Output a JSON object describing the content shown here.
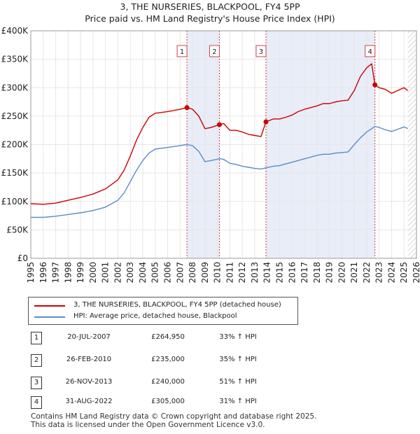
{
  "title_line1": "3, THE NURSERIES, BLACKPOOL, FY4 5PP",
  "title_line2": "Price paid vs. HM Land Registry's House Price Index (HPI)",
  "chart_data": {
    "type": "line",
    "title": "3, THE NURSERIES, BLACKPOOL, FY4 5PP — Price paid vs. HM Land Registry's House Price Index (HPI)",
    "xlabel": "",
    "ylabel": "",
    "xlim": [
      1995,
      2026
    ],
    "ylim": [
      0,
      400000
    ],
    "x_ticks": [
      1995,
      1996,
      1997,
      1998,
      1999,
      2000,
      2001,
      2002,
      2003,
      2004,
      2005,
      2006,
      2007,
      2008,
      2009,
      2010,
      2011,
      2012,
      2013,
      2014,
      2015,
      2016,
      2017,
      2018,
      2019,
      2020,
      2021,
      2022,
      2023,
      2024,
      2025,
      2026
    ],
    "y_ticks": [
      {
        "value": 0,
        "label": "£0"
      },
      {
        "value": 50000,
        "label": "£50K"
      },
      {
        "value": 100000,
        "label": "£100K"
      },
      {
        "value": 150000,
        "label": "£150K"
      },
      {
        "value": 200000,
        "label": "£200K"
      },
      {
        "value": 250000,
        "label": "£250K"
      },
      {
        "value": 300000,
        "label": "£300K"
      },
      {
        "value": 350000,
        "label": "£350K"
      },
      {
        "value": 400000,
        "label": "£400K"
      }
    ],
    "series": [
      {
        "name": "3, THE NURSERIES, BLACKPOOL, FY4 5PP (detached house)",
        "color": "#cc0000",
        "points": [
          [
            1995.0,
            96000
          ],
          [
            1996.0,
            95000
          ],
          [
            1997.0,
            97000
          ],
          [
            1998.0,
            102000
          ],
          [
            1999.0,
            107000
          ],
          [
            2000.0,
            113000
          ],
          [
            2001.0,
            122000
          ],
          [
            2002.0,
            138000
          ],
          [
            2002.5,
            155000
          ],
          [
            2003.0,
            180000
          ],
          [
            2003.5,
            208000
          ],
          [
            2004.0,
            230000
          ],
          [
            2004.5,
            248000
          ],
          [
            2005.0,
            255000
          ],
          [
            2006.0,
            258000
          ],
          [
            2007.0,
            262000
          ],
          [
            2007.55,
            264950
          ],
          [
            2008.0,
            262000
          ],
          [
            2008.5,
            250000
          ],
          [
            2009.0,
            228000
          ],
          [
            2009.5,
            230000
          ],
          [
            2010.16,
            235000
          ],
          [
            2010.5,
            237000
          ],
          [
            2011.0,
            225000
          ],
          [
            2011.5,
            225000
          ],
          [
            2012.0,
            222000
          ],
          [
            2012.5,
            218000
          ],
          [
            2013.0,
            216000
          ],
          [
            2013.5,
            214000
          ],
          [
            2013.9,
            240000
          ],
          [
            2014.5,
            245000
          ],
          [
            2015.0,
            245000
          ],
          [
            2015.5,
            248000
          ],
          [
            2016.0,
            252000
          ],
          [
            2016.5,
            258000
          ],
          [
            2017.0,
            262000
          ],
          [
            2017.5,
            265000
          ],
          [
            2018.0,
            268000
          ],
          [
            2018.5,
            272000
          ],
          [
            2019.0,
            272000
          ],
          [
            2019.5,
            275000
          ],
          [
            2020.0,
            277000
          ],
          [
            2020.5,
            278000
          ],
          [
            2021.0,
            295000
          ],
          [
            2021.5,
            320000
          ],
          [
            2022.0,
            335000
          ],
          [
            2022.4,
            342000
          ],
          [
            2022.66,
            305000
          ],
          [
            2023.0,
            300000
          ],
          [
            2023.5,
            297000
          ],
          [
            2024.0,
            290000
          ],
          [
            2024.5,
            295000
          ],
          [
            2025.0,
            300000
          ],
          [
            2025.3,
            295000
          ]
        ]
      },
      {
        "name": "HPI: Average price, detached house, Blackpool",
        "color": "#5b8cc8",
        "points": [
          [
            1995.0,
            72000
          ],
          [
            1996.0,
            72000
          ],
          [
            1997.0,
            74000
          ],
          [
            1998.0,
            77000
          ],
          [
            1999.0,
            80000
          ],
          [
            2000.0,
            84000
          ],
          [
            2001.0,
            90000
          ],
          [
            2002.0,
            102000
          ],
          [
            2002.5,
            115000
          ],
          [
            2003.0,
            135000
          ],
          [
            2003.5,
            155000
          ],
          [
            2004.0,
            172000
          ],
          [
            2004.5,
            185000
          ],
          [
            2005.0,
            192000
          ],
          [
            2006.0,
            195000
          ],
          [
            2007.0,
            198000
          ],
          [
            2007.55,
            200000
          ],
          [
            2008.0,
            198000
          ],
          [
            2008.5,
            188000
          ],
          [
            2009.0,
            170000
          ],
          [
            2009.5,
            172000
          ],
          [
            2010.16,
            175000
          ],
          [
            2010.5,
            174000
          ],
          [
            2011.0,
            167000
          ],
          [
            2011.5,
            165000
          ],
          [
            2012.0,
            162000
          ],
          [
            2012.5,
            160000
          ],
          [
            2013.0,
            158000
          ],
          [
            2013.5,
            157000
          ],
          [
            2013.9,
            159000
          ],
          [
            2014.5,
            162000
          ],
          [
            2015.0,
            163000
          ],
          [
            2015.5,
            166000
          ],
          [
            2016.0,
            169000
          ],
          [
            2016.5,
            172000
          ],
          [
            2017.0,
            175000
          ],
          [
            2017.5,
            178000
          ],
          [
            2018.0,
            181000
          ],
          [
            2018.5,
            183000
          ],
          [
            2019.0,
            183000
          ],
          [
            2019.5,
            185000
          ],
          [
            2020.0,
            186000
          ],
          [
            2020.5,
            187000
          ],
          [
            2021.0,
            200000
          ],
          [
            2021.5,
            212000
          ],
          [
            2022.0,
            222000
          ],
          [
            2022.4,
            228000
          ],
          [
            2022.66,
            232000
          ],
          [
            2023.0,
            230000
          ],
          [
            2023.5,
            226000
          ],
          [
            2024.0,
            223000
          ],
          [
            2024.5,
            227000
          ],
          [
            2025.0,
            231000
          ],
          [
            2025.3,
            228000
          ]
        ]
      }
    ],
    "transactions": [
      {
        "num": "1",
        "date": "20-JUL-2007",
        "x": 2007.55,
        "price_value": 264950,
        "price": "£264,950",
        "hpi": "33% ↑ HPI"
      },
      {
        "num": "2",
        "date": "26-FEB-2010",
        "x": 2010.16,
        "price_value": 235000,
        "price": "£235,000",
        "hpi": "35% ↑ HPI"
      },
      {
        "num": "3",
        "date": "26-NOV-2013",
        "x": 2013.9,
        "price_value": 240000,
        "price": "£240,000",
        "hpi": "51% ↑ HPI"
      },
      {
        "num": "4",
        "date": "31-AUG-2022",
        "x": 2022.66,
        "price_value": 305000,
        "price": "£305,000",
        "hpi": "31% ↑ HPI"
      }
    ],
    "shaded_periods": [
      [
        2007.55,
        2010.16
      ],
      [
        2013.9,
        2022.66
      ]
    ],
    "forecast_start": 2025.3,
    "legend_position": "below"
  },
  "legend": {
    "items": [
      {
        "label": "3, THE NURSERIES, BLACKPOOL, FY4 5PP (detached house)",
        "color": "#cc0000"
      },
      {
        "label": "HPI: Average price, detached house, Blackpool",
        "color": "#5b8cc8"
      }
    ]
  },
  "footer_line1": "Contains HM Land Registry data © Crown copyright and database right 2025.",
  "footer_line2": "This data is licensed under the Open Government Licence v3.0."
}
